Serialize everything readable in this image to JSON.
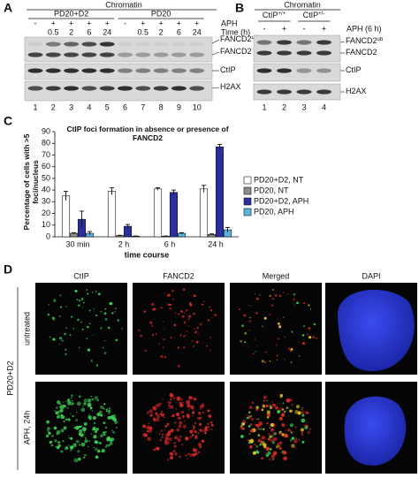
{
  "panel_a": {
    "letter": "A",
    "header": "Chromatin",
    "groups": [
      "PD20+D2",
      "PD20"
    ],
    "row_labels": [
      "APH",
      "Time (h)"
    ],
    "aph": [
      "-",
      "+",
      "+",
      "+",
      "+",
      "-",
      "+",
      "+",
      "+",
      "+"
    ],
    "time": [
      null,
      "0.5",
      "2",
      "6",
      "24",
      null,
      "0.5",
      "2",
      "6",
      "24"
    ],
    "lanes": [
      1,
      2,
      3,
      4,
      5,
      6,
      7,
      8,
      9,
      10
    ],
    "bands": [
      {
        "name": "FANCD2",
        "sup": "ub"
      },
      {
        "name": "FANCD2"
      },
      {
        "name": "CtIP"
      },
      {
        "name": "H2AX"
      }
    ]
  },
  "panel_b": {
    "letter": "B",
    "header": "Chromatin",
    "groups": [
      {
        "name": "CtIP",
        "sup": "+/+"
      },
      {
        "name": "CtIP",
        "sup": "+/-"
      }
    ],
    "row_label": "APH (6 h)",
    "aph": [
      "-",
      "+",
      "-",
      "+"
    ],
    "lanes": [
      1,
      2,
      3,
      4
    ],
    "bands": [
      {
        "name": "FANCD2",
        "sup": "ub"
      },
      {
        "name": "FANCD2"
      },
      {
        "name": "CtIP"
      },
      {
        "name": "H2AX"
      }
    ]
  },
  "chart_data": {
    "type": "bar",
    "letter": "C",
    "title": "CtIP foci formation in absence or presence of FANCD2",
    "y_label": "Percentage of cells with >5 foci/nucleus",
    "x_label": "time course",
    "categories": [
      "30 min",
      "2 h",
      "6 h",
      "24 h"
    ],
    "ylim": [
      0,
      90
    ],
    "yticks": [
      0,
      10,
      20,
      30,
      40,
      50,
      60,
      70,
      80,
      90
    ],
    "legend": "right",
    "series": [
      {
        "name": "PD20+D2, NT",
        "color": "#ffffff",
        "values": [
          35,
          39,
          41,
          41
        ],
        "errors": [
          4,
          3,
          1,
          3
        ]
      },
      {
        "name": "PD20, NT",
        "color": "#8c8c8c",
        "values": [
          3,
          1,
          0.5,
          2
        ],
        "errors": [
          0.5,
          0.3,
          0.2,
          0.5
        ]
      },
      {
        "name": "PD20+D2, APH",
        "color": "#2b2f9c",
        "values": [
          15,
          9,
          38,
          77
        ],
        "errors": [
          7,
          1.5,
          2,
          2
        ]
      },
      {
        "name": "PD20, APH",
        "color": "#5ab4e0",
        "values": [
          3,
          0.5,
          3,
          6
        ],
        "errors": [
          1.5,
          0.2,
          0.5,
          2
        ]
      }
    ]
  },
  "panel_d": {
    "letter": "D",
    "columns": [
      "CtIP",
      "FANCD2",
      "Merged",
      "DAPI"
    ],
    "group_label": "PD20+D2",
    "rows": [
      "untreated",
      "APH, 24h"
    ]
  }
}
